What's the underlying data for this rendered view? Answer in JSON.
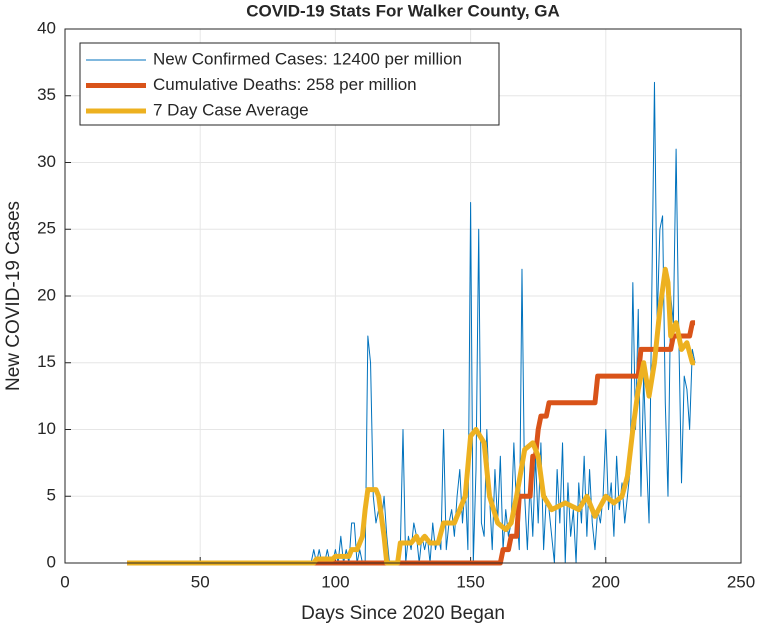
{
  "chart_data": {
    "type": "line",
    "title": "COVID-19 Stats For Walker County, GA",
    "xlabel": "Days Since 2020 Began",
    "ylabel": "New COVID-19 Cases",
    "xlim": [
      0,
      250
    ],
    "xticks": [
      0,
      50,
      100,
      150,
      200,
      250
    ],
    "ylim": [
      0,
      40
    ],
    "yticks": [
      0,
      5,
      10,
      15,
      20,
      25,
      30,
      35,
      40
    ],
    "grid": true,
    "legend": "upper left",
    "series": [
      {
        "name": "New Confirmed Cases: 12400 per million",
        "color": "#0072BD",
        "width": 1,
        "x": [
          23,
          91,
          92,
          93,
          94,
          95,
          96,
          97,
          98,
          99,
          100,
          101,
          102,
          103,
          104,
          105,
          106,
          107,
          108,
          109,
          110,
          111,
          112,
          113,
          114,
          115,
          116,
          117,
          118,
          119,
          120,
          121,
          122,
          123,
          124,
          125,
          126,
          127,
          128,
          129,
          130,
          131,
          132,
          133,
          134,
          135,
          136,
          137,
          138,
          139,
          140,
          141,
          142,
          143,
          144,
          145,
          146,
          147,
          148,
          149,
          150,
          151,
          152,
          153,
          154,
          155,
          156,
          157,
          158,
          159,
          160,
          161,
          162,
          163,
          164,
          165,
          166,
          167,
          168,
          169,
          170,
          171,
          172,
          173,
          174,
          175,
          176,
          177,
          178,
          179,
          180,
          181,
          182,
          183,
          184,
          185,
          186,
          187,
          188,
          189,
          190,
          191,
          192,
          193,
          194,
          195,
          196,
          197,
          198,
          199,
          200,
          201,
          202,
          203,
          204,
          205,
          206,
          207,
          208,
          209,
          210,
          211,
          212,
          213,
          214,
          215,
          216,
          217,
          218,
          219,
          220,
          221,
          222,
          223,
          224,
          225,
          226,
          227,
          228,
          229,
          230,
          231,
          232,
          233
        ],
        "values": [
          0,
          0,
          1,
          0,
          1,
          0,
          0,
          1,
          0,
          0,
          1,
          0,
          2,
          0,
          1,
          0,
          3,
          3,
          0,
          1,
          0,
          0,
          17,
          15,
          5,
          3,
          4,
          3,
          5,
          2,
          0,
          0,
          0,
          0,
          1,
          10,
          0,
          2,
          1,
          3,
          2,
          0,
          2,
          1,
          2,
          0,
          3,
          1,
          2,
          1,
          10,
          1,
          3,
          4,
          2,
          5,
          7,
          3,
          6,
          1,
          27,
          0,
          7,
          25,
          3,
          2,
          10,
          5,
          1,
          7,
          3,
          8,
          1,
          4,
          2,
          3,
          9,
          4,
          1,
          22,
          5,
          1,
          6,
          2,
          8,
          3,
          9,
          1,
          5,
          4,
          2,
          0,
          7,
          3,
          9,
          0,
          6,
          2,
          4,
          0,
          6,
          3,
          8,
          2,
          7,
          3,
          1,
          4,
          3,
          5,
          10,
          4,
          6,
          2,
          8,
          4,
          6,
          3,
          5,
          7,
          21,
          10,
          19,
          5,
          14,
          8,
          3,
          20,
          36,
          18,
          25,
          26,
          12,
          5,
          20,
          18,
          31,
          17,
          6,
          14,
          13,
          10,
          16,
          15
        ]
      },
      {
        "name": "Cumulative Deaths: 258 per million",
        "color": "#D95319",
        "width": 5,
        "x": [
          23,
          161,
          162,
          164,
          165,
          167,
          168,
          172,
          173,
          174,
          175,
          176,
          178,
          179,
          196,
          197,
          212,
          213,
          224,
          225,
          231,
          232,
          233
        ],
        "values": [
          0,
          0,
          1,
          1,
          2,
          2,
          5,
          5,
          8,
          8,
          10,
          11,
          11,
          12,
          12,
          14,
          14,
          16,
          16,
          17,
          17,
          18,
          18
        ]
      },
      {
        "name": "7 Day Case Average",
        "color": "#EDB120",
        "width": 5,
        "x": [
          23,
          92,
          93,
          99,
          100,
          105,
          106,
          108,
          110,
          111,
          112,
          115,
          116,
          118,
          119,
          123,
          124,
          128,
          130,
          131,
          133,
          135,
          138,
          140,
          144,
          146,
          148,
          150,
          152,
          155,
          157,
          160,
          163,
          165,
          167,
          170,
          173,
          175,
          177,
          180,
          185,
          190,
          193,
          196,
          200,
          203,
          206,
          208,
          210,
          212,
          214,
          216,
          218,
          220,
          222,
          223,
          224,
          226,
          228,
          230,
          232,
          233
        ],
        "values": [
          0,
          0,
          0.3,
          0.3,
          0.5,
          0.5,
          1,
          1,
          2,
          4,
          5.5,
          5.5,
          5,
          2,
          0,
          0,
          1.5,
          1.5,
          2,
          1.5,
          2,
          1.5,
          1.5,
          3,
          3,
          4,
          5,
          9.5,
          10,
          9,
          5,
          3,
          2.5,
          3,
          5,
          8.5,
          9,
          8,
          5,
          4,
          4.5,
          4,
          5,
          3.5,
          5,
          4.5,
          5,
          6.5,
          10,
          13,
          15,
          12.5,
          15,
          19,
          22,
          21,
          17,
          18,
          16,
          16.5,
          15,
          15
        ]
      }
    ]
  }
}
